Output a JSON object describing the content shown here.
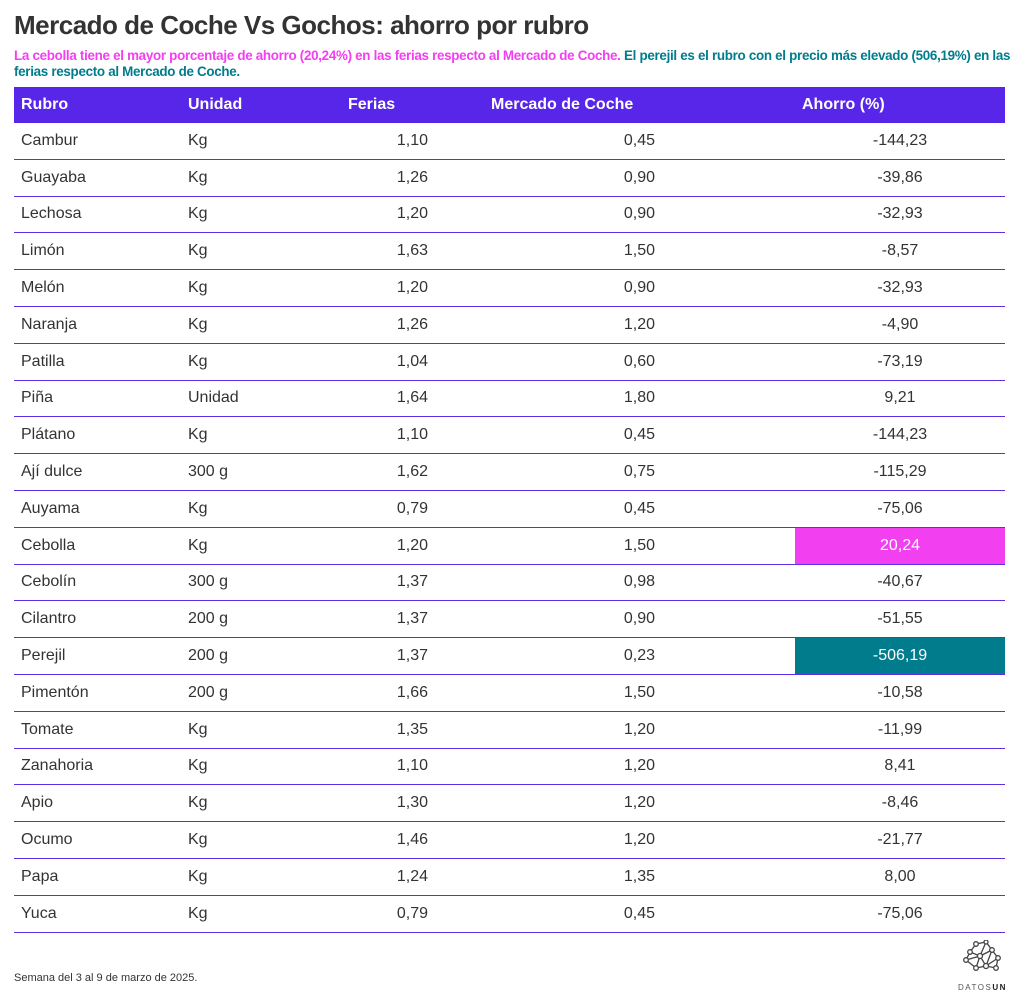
{
  "title": "Mercado de Coche Vs Gochos: ahorro por rubro",
  "subtitle": {
    "pink": "La cebolla tiene el mayor porcentaje de ahorro (20,24%) en las ferias respecto al Mercado de Coche.",
    "teal": "El perejil es el rubro con el precio más elevado (506,19%) en las ferias respecto al Mercado de Coche."
  },
  "colors": {
    "header": "#5726e8",
    "highlight_max": "#f23ff0",
    "highlight_min": "#007c8c"
  },
  "columns": [
    "Rubro",
    "Unidad",
    "Ferias",
    "Mercado de Coche",
    "Ahorro (%)"
  ],
  "rows": [
    [
      "Cambur",
      "Kg",
      "1,10",
      "0,45",
      "-144,23"
    ],
    [
      "Guayaba",
      "Kg",
      "1,26",
      "0,90",
      "-39,86"
    ],
    [
      "Lechosa",
      "Kg",
      "1,20",
      "0,90",
      "-32,93"
    ],
    [
      "Limón",
      "Kg",
      "1,63",
      "1,50",
      "-8,57"
    ],
    [
      "Melón",
      "Kg",
      "1,20",
      "0,90",
      "-32,93"
    ],
    [
      "Naranja",
      "Kg",
      "1,26",
      "1,20",
      "-4,90"
    ],
    [
      "Patilla",
      "Kg",
      "1,04",
      "0,60",
      "-73,19"
    ],
    [
      "Piña",
      "Unidad",
      "1,64",
      "1,80",
      "9,21"
    ],
    [
      "Plátano",
      "Kg",
      "1,10",
      "0,45",
      "-144,23"
    ],
    [
      "Ají dulce",
      "300 g",
      "1,62",
      "0,75",
      "-115,29"
    ],
    [
      "Auyama",
      "Kg",
      "0,79",
      "0,45",
      "-75,06"
    ],
    [
      "Cebolla",
      "Kg",
      "1,20",
      "1,50",
      "20,24"
    ],
    [
      "Cebolín",
      "300 g",
      "1,37",
      "0,98",
      "-40,67"
    ],
    [
      "Cilantro",
      "200 g",
      "1,37",
      "0,90",
      "-51,55"
    ],
    [
      "Perejil",
      "200 g",
      "1,37",
      "0,23",
      "-506,19"
    ],
    [
      "Pimentón",
      "200 g",
      "1,66",
      "1,50",
      "-10,58"
    ],
    [
      "Tomate",
      "Kg",
      "1,35",
      "1,20",
      "-11,99"
    ],
    [
      "Zanahoria",
      "Kg",
      "1,10",
      "1,20",
      "8,41"
    ],
    [
      "Apio",
      "Kg",
      "1,30",
      "1,20",
      "-8,46"
    ],
    [
      "Ocumo",
      "Kg",
      "1,46",
      "1,20",
      "-21,77"
    ],
    [
      "Papa",
      "Kg",
      "1,24",
      "1,35",
      "8,00"
    ],
    [
      "Yuca",
      "Kg",
      "0,79",
      "0,45",
      "-75,06"
    ]
  ],
  "highlights": {
    "max_row": 11,
    "min_row": 14
  },
  "footer": "Semana del 3 al 9 de marzo de 2025.",
  "logo": "DATOSUN"
}
